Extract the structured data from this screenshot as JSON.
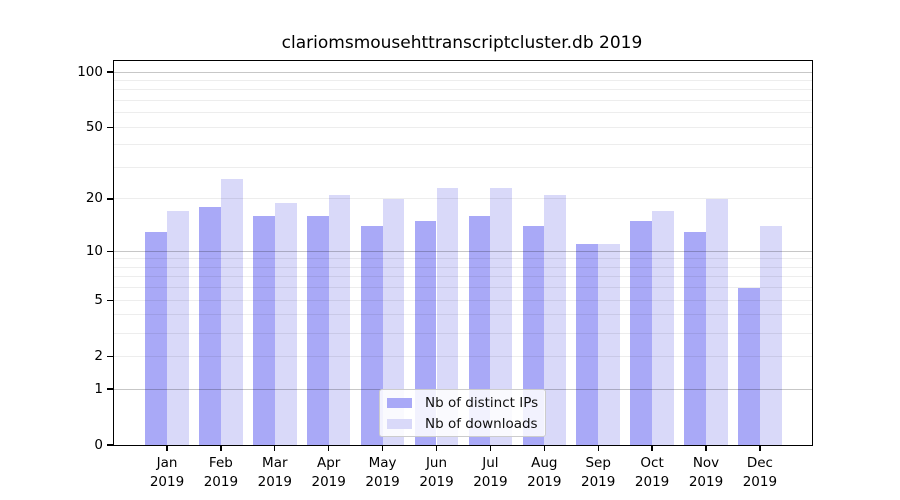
{
  "page": {
    "background": "#ffffff"
  },
  "chart_data": {
    "type": "bar",
    "title": "clariomsmousehttranscriptcluster.db 2019",
    "categories": [
      "Jan",
      "Feb",
      "Mar",
      "Apr",
      "May",
      "Jun",
      "Jul",
      "Aug",
      "Sep",
      "Oct",
      "Nov",
      "Dec"
    ],
    "x_tick_second_line": "2019",
    "series": [
      {
        "name": "Nb of distinct IPs",
        "color": "#a9a9f7",
        "values": [
          13,
          18,
          16,
          16,
          14,
          15,
          16,
          14,
          11,
          15,
          13,
          6
        ]
      },
      {
        "name": "Nb of downloads",
        "color": "#d9d9f9",
        "values": [
          17,
          26,
          19,
          21,
          20,
          23,
          23,
          21,
          11,
          17,
          20,
          14
        ]
      }
    ],
    "y_scale": "log(1+x)",
    "y_axis": {
      "max": 114.7,
      "tick_values": [
        0,
        1,
        2,
        5,
        10,
        20,
        50,
        100
      ],
      "tick_labels": [
        "0",
        "1",
        "2",
        "5",
        "10",
        "20",
        "50",
        "100"
      ],
      "major_grid": [
        1,
        10,
        100
      ],
      "minor_grid": [
        2,
        3,
        4,
        5,
        6,
        7,
        8,
        9,
        20,
        30,
        40,
        50,
        60,
        70,
        80,
        90
      ]
    },
    "legend": {
      "location": "lower center"
    },
    "grid": true,
    "xlabel": "",
    "ylabel": ""
  },
  "colors": {
    "bar_distinct_ips": "#a9a9f7",
    "bar_downloads": "#d9d9f9",
    "axis": "#000000",
    "grid_major": "#c7c7c7",
    "grid_minor": "#ededed",
    "legend_border": "#cccccc",
    "background": "#ffffff"
  }
}
